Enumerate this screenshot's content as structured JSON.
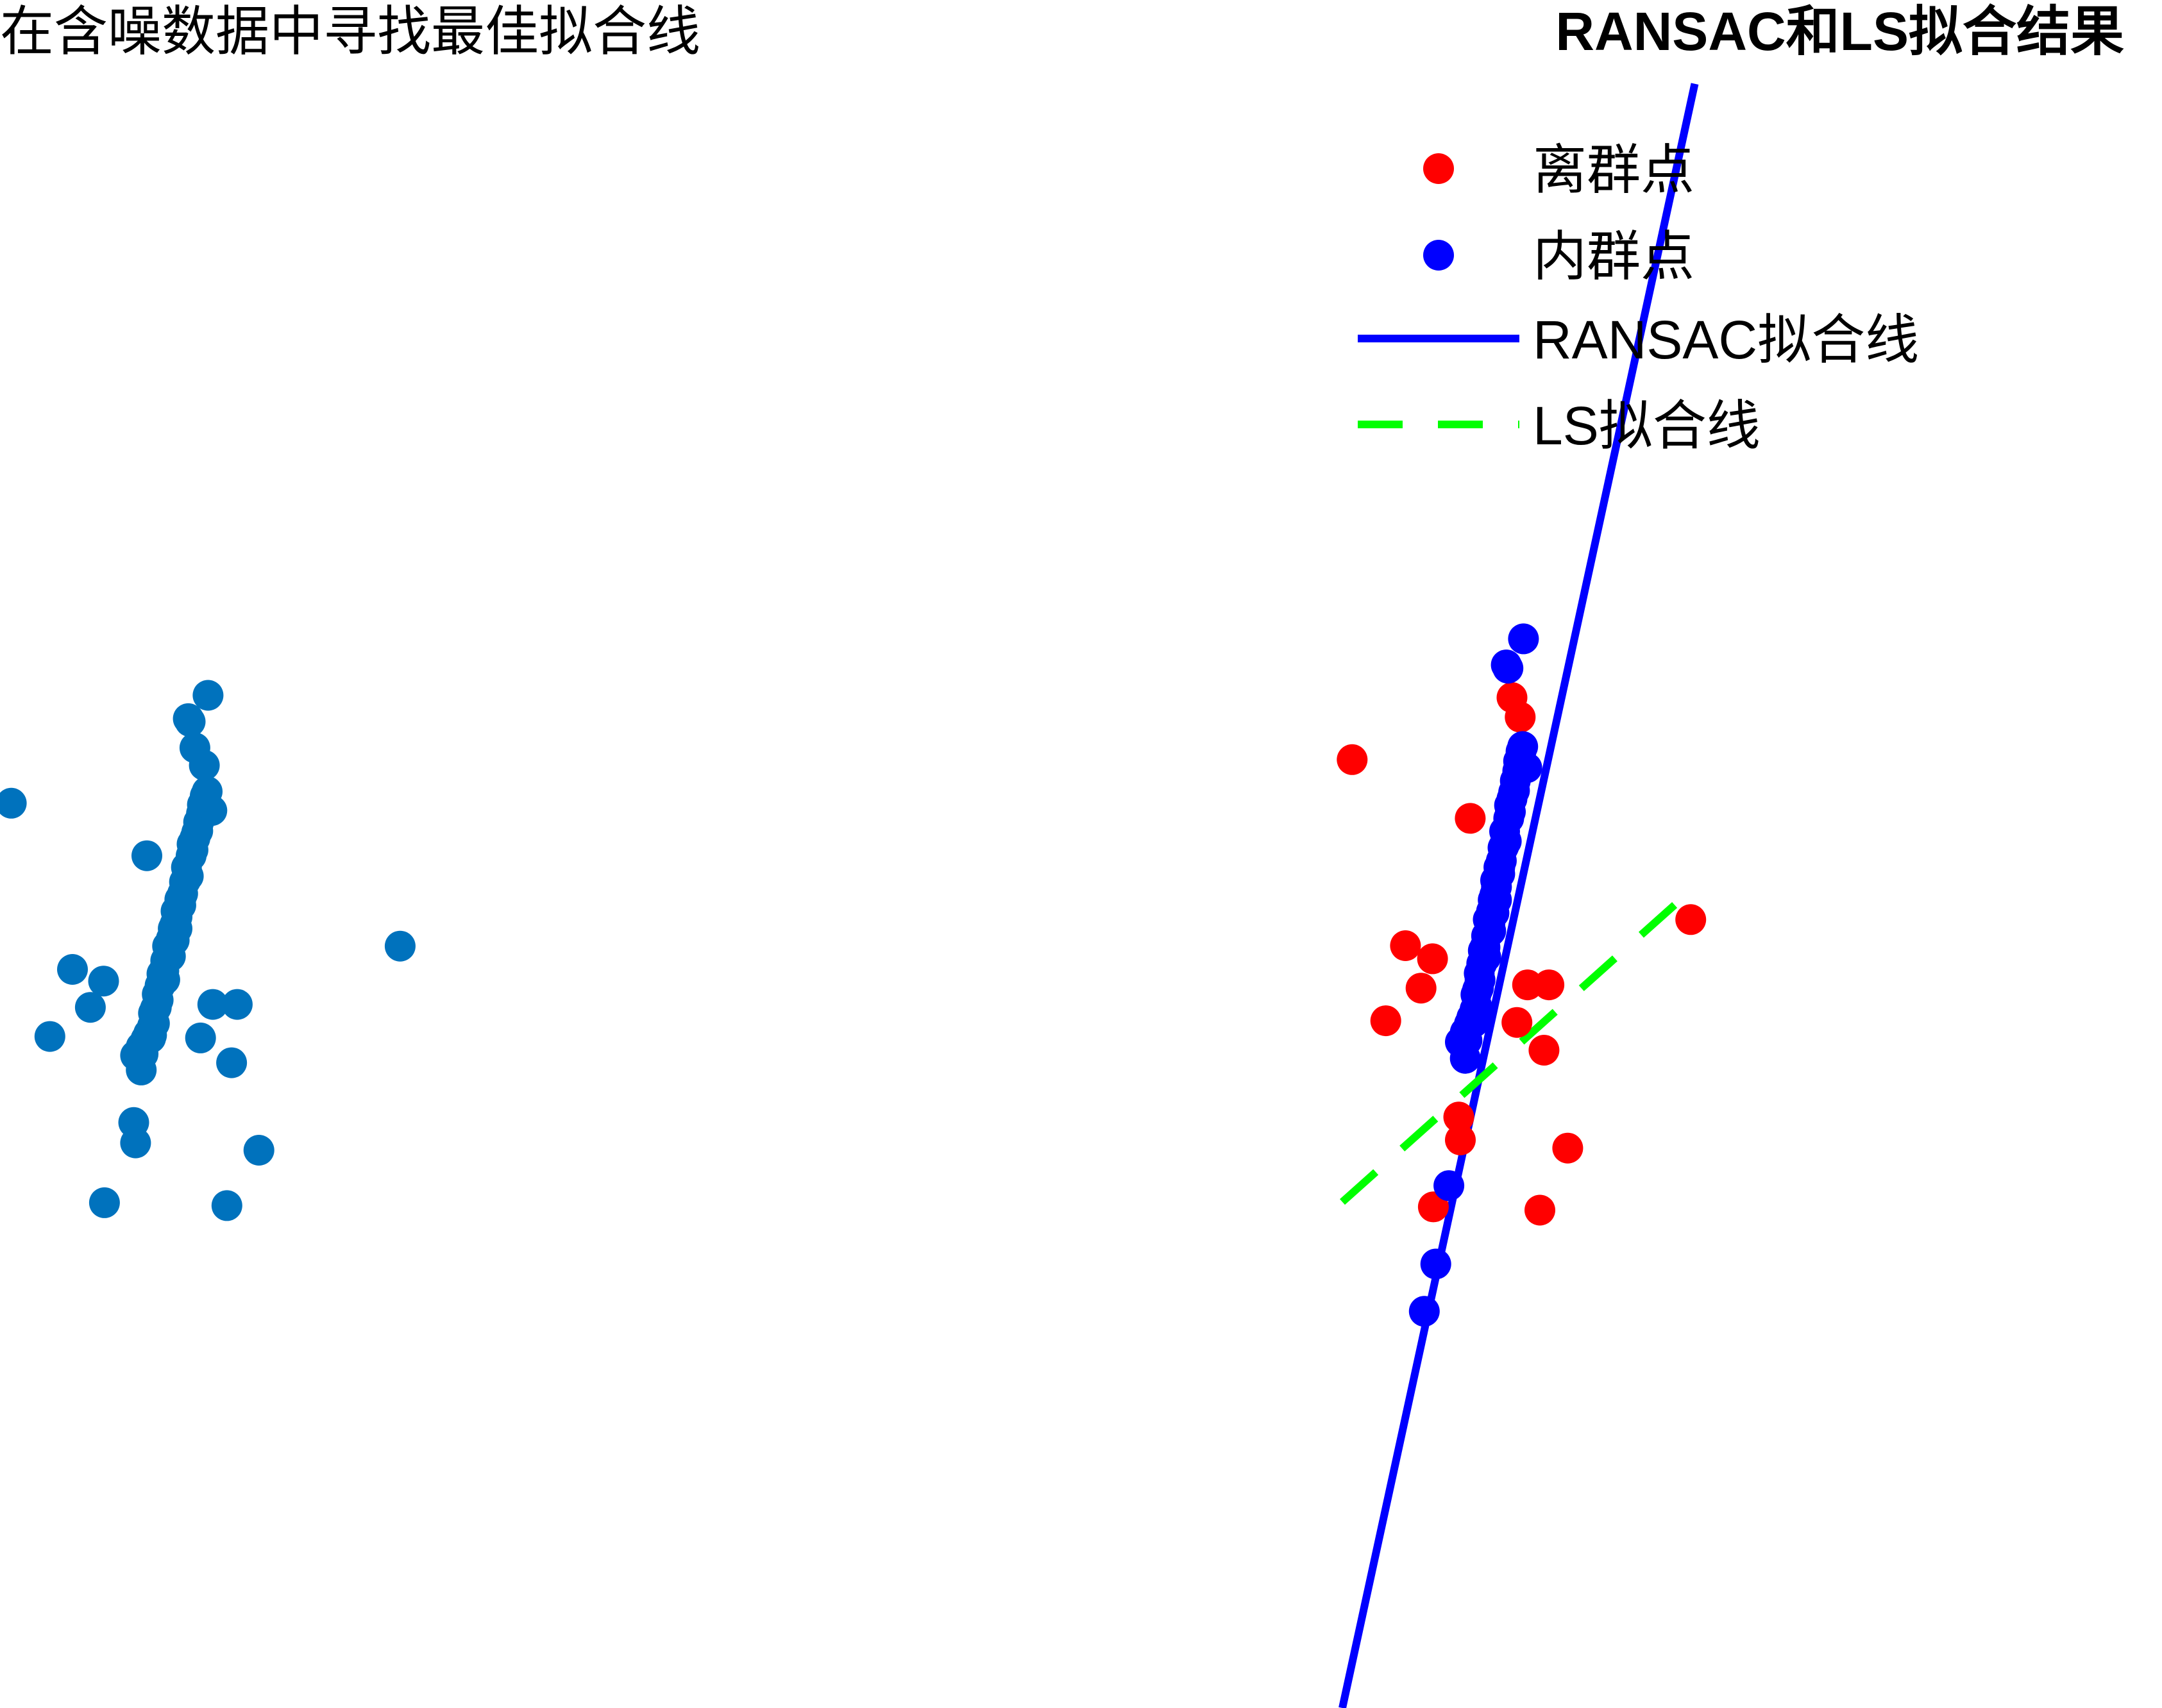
{
  "chart_data": [
    {
      "type": "scatter",
      "title": "在含噪数据中寻找最佳拟合线",
      "xlabel": "",
      "ylabel": "",
      "axes_visible": false,
      "xlim": [
        0,
        10
      ],
      "ylim": [
        0,
        10
      ],
      "color": "#0072BD",
      "points": [
        [
          0.12,
          5.81
        ],
        [
          0.77,
          4.67
        ],
        [
          1.1,
          4.59
        ],
        [
          0.53,
          4.21
        ],
        [
          0.96,
          4.41
        ],
        [
          1.42,
          3.62
        ],
        [
          1.44,
          3.48
        ],
        [
          1.11,
          3.07
        ],
        [
          4.25,
          4.83
        ],
        [
          2.26,
          4.43
        ],
        [
          2.52,
          4.43
        ],
        [
          2.13,
          4.2
        ],
        [
          2.46,
          4.03
        ],
        [
          2.75,
          3.43
        ],
        [
          2.41,
          3.05
        ],
        [
          2.0,
          6.39
        ],
        [
          2.02,
          6.37
        ],
        [
          2.21,
          6.55
        ],
        [
          2.25,
          5.76
        ],
        [
          1.56,
          5.45
        ],
        [
          2.07,
          6.19
        ],
        [
          2.17,
          6.07
        ],
        [
          1.44,
          4.08
        ],
        [
          1.5,
          3.98
        ],
        [
          1.55,
          4.19
        ],
        [
          1.62,
          4.28
        ],
        [
          1.63,
          4.37
        ],
        [
          1.67,
          4.5
        ],
        [
          1.72,
          4.64
        ],
        [
          1.78,
          4.83
        ],
        [
          1.84,
          4.95
        ],
        [
          1.87,
          5.07
        ],
        [
          1.91,
          5.15
        ],
        [
          1.96,
          5.27
        ],
        [
          1.98,
          5.37
        ],
        [
          2.03,
          5.45
        ],
        [
          2.07,
          5.57
        ],
        [
          2.11,
          5.68
        ],
        [
          2.15,
          5.8
        ],
        [
          2.2,
          5.89
        ],
        [
          1.5,
          4.14
        ],
        [
          1.58,
          4.23
        ],
        [
          1.65,
          4.4
        ],
        [
          1.7,
          4.56
        ],
        [
          1.76,
          4.73
        ],
        [
          1.82,
          4.88
        ],
        [
          1.88,
          5.03
        ],
        [
          1.94,
          5.19
        ],
        [
          2.0,
          5.31
        ],
        [
          2.05,
          5.49
        ],
        [
          2.1,
          5.62
        ],
        [
          2.14,
          5.74
        ],
        [
          2.18,
          5.86
        ],
        [
          1.6,
          4.2
        ],
        [
          1.68,
          4.46
        ],
        [
          1.74,
          4.66
        ],
        [
          1.8,
          4.8
        ],
        [
          1.86,
          4.98
        ],
        [
          1.92,
          5.11
        ],
        [
          1.97,
          5.28
        ],
        [
          2.04,
          5.53
        ],
        [
          2.09,
          5.61
        ],
        [
          1.92,
          5.15
        ],
        [
          1.88,
          4.95
        ],
        [
          1.85,
          4.87
        ],
        [
          1.81,
          4.76
        ],
        [
          1.75,
          4.6
        ],
        [
          1.66,
          4.41
        ],
        [
          1.64,
          4.3
        ],
        [
          1.56,
          4.2
        ],
        [
          1.52,
          4.09
        ],
        [
          1.61,
          4.22
        ]
      ]
    },
    {
      "type": "scatter",
      "title": "RANSAC和LS拟合结果",
      "xlabel": "",
      "ylabel": "",
      "axes_visible": false,
      "xlim": [
        0,
        10
      ],
      "ylim": [
        0,
        10
      ],
      "legend_position": "top-right",
      "series": [
        {
          "name": "离群点",
          "color": "#FF0000",
          "marker": "circle",
          "points": [
            [
              0.12,
              5.81
            ],
            [
              0.77,
              4.67
            ],
            [
              1.1,
              4.59
            ],
            [
              0.53,
              4.21
            ],
            [
              0.96,
              4.41
            ],
            [
              1.42,
              3.62
            ],
            [
              1.44,
              3.48
            ],
            [
              1.11,
              3.07
            ],
            [
              4.25,
              4.83
            ],
            [
              2.26,
              4.43
            ],
            [
              2.52,
              4.43
            ],
            [
              2.13,
              4.2
            ],
            [
              2.46,
              4.03
            ],
            [
              2.75,
              3.43
            ],
            [
              2.41,
              3.05
            ],
            [
              1.56,
              5.45
            ],
            [
              2.07,
              6.19
            ],
            [
              2.17,
              6.07
            ]
          ]
        },
        {
          "name": "内群点",
          "color": "#0000FF",
          "marker": "circle",
          "points": [
            [
              2.0,
              6.39
            ],
            [
              2.02,
              6.37
            ],
            [
              2.21,
              6.55
            ],
            [
              2.25,
              5.76
            ],
            [
              1.44,
              4.08
            ],
            [
              1.5,
              3.98
            ],
            [
              1.55,
              4.19
            ],
            [
              1.62,
              4.28
            ],
            [
              1.63,
              4.37
            ],
            [
              1.67,
              4.5
            ],
            [
              1.72,
              4.64
            ],
            [
              1.78,
              4.83
            ],
            [
              1.84,
              4.95
            ],
            [
              1.87,
              5.07
            ],
            [
              1.91,
              5.15
            ],
            [
              1.96,
              5.27
            ],
            [
              1.98,
              5.37
            ],
            [
              2.03,
              5.45
            ],
            [
              2.07,
              5.57
            ],
            [
              2.11,
              5.68
            ],
            [
              2.15,
              5.8
            ],
            [
              2.2,
              5.89
            ],
            [
              1.5,
              4.14
            ],
            [
              1.58,
              4.23
            ],
            [
              1.65,
              4.4
            ],
            [
              1.7,
              4.56
            ],
            [
              1.76,
              4.73
            ],
            [
              1.82,
              4.88
            ],
            [
              1.88,
              5.03
            ],
            [
              1.94,
              5.19
            ],
            [
              2.0,
              5.31
            ],
            [
              2.05,
              5.49
            ],
            [
              2.1,
              5.62
            ],
            [
              2.14,
              5.74
            ],
            [
              2.18,
              5.86
            ],
            [
              1.6,
              4.2
            ],
            [
              1.68,
              4.46
            ],
            [
              1.74,
              4.66
            ],
            [
              1.8,
              4.8
            ],
            [
              1.86,
              4.98
            ],
            [
              1.92,
              5.11
            ],
            [
              1.97,
              5.28
            ],
            [
              2.04,
              5.53
            ],
            [
              2.09,
              5.61
            ],
            [
              1.92,
              5.15
            ],
            [
              1.88,
              4.95
            ],
            [
              1.85,
              4.87
            ],
            [
              1.81,
              4.76
            ],
            [
              1.75,
              4.6
            ],
            [
              1.66,
              4.41
            ],
            [
              1.64,
              4.3
            ],
            [
              1.56,
              4.2
            ],
            [
              1.52,
              4.09
            ],
            [
              1.61,
              4.22
            ],
            [
              1.3,
              3.2
            ],
            [
              1.14,
              2.72
            ],
            [
              1.0,
              2.43
            ]
          ]
        },
        {
          "name": "RANSAC拟合线",
          "type": "line",
          "color": "#0000FF",
          "style": "solid",
          "x": [
            0.0,
            4.3
          ],
          "y": [
            0.0,
            9.95
          ]
        },
        {
          "name": "LS拟合线",
          "type": "line",
          "color": "#00FF00",
          "style": "dashed",
          "x": [
            0.0,
            4.3
          ],
          "y": [
            3.1,
            5.03
          ]
        }
      ]
    }
  ]
}
